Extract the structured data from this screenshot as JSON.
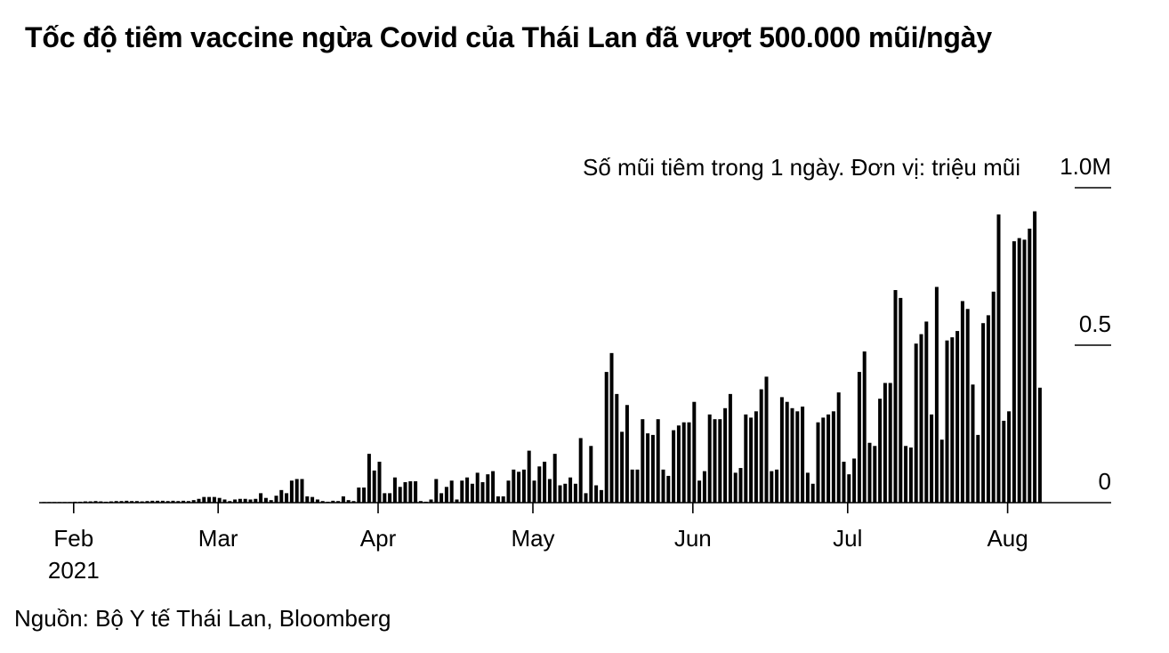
{
  "title": "Tốc độ tiêm vaccine ngừa Covid của Thái Lan đã vượt 500.000 mũi/ngày",
  "source": "Nguồn: Bộ Y tế Thái Lan, Bloomberg",
  "chart_data": {
    "type": "bar",
    "units_note": "Số mũi tiêm trong 1 ngày. Đơn vị: triệu mũi",
    "ylim": [
      0,
      1.0
    ],
    "y_ticks": [
      {
        "value": 0,
        "label": "0"
      },
      {
        "value": 0.5,
        "label": "0.5"
      },
      {
        "value": 1.0,
        "label": "1.0M"
      }
    ],
    "x_ticks": [
      {
        "date": "2021-02-01",
        "label": "Feb",
        "sublabel": "2021"
      },
      {
        "date": "2021-03-01",
        "label": "Mar"
      },
      {
        "date": "2021-04-01",
        "label": "Apr"
      },
      {
        "date": "2021-05-01",
        "label": "May"
      },
      {
        "date": "2021-06-01",
        "label": "Jun"
      },
      {
        "date": "2021-07-01",
        "label": "Jul"
      },
      {
        "date": "2021-08-01",
        "label": "Aug"
      }
    ],
    "x_start": "2021-01-26",
    "series": [
      {
        "values": [
          0.002,
          0.002,
          0.002,
          0.002,
          0.002,
          0.002,
          0.003,
          0.003,
          0.004,
          0.004,
          0.005,
          0.004,
          0.003,
          0.004,
          0.005,
          0.005,
          0.006,
          0.005,
          0.005,
          0.004,
          0.005,
          0.006,
          0.006,
          0.006,
          0.005,
          0.006,
          0.005,
          0.006,
          0.005,
          0.008,
          0.012,
          0.018,
          0.018,
          0.018,
          0.015,
          0.01,
          0.005,
          0.01,
          0.012,
          0.012,
          0.01,
          0.012,
          0.03,
          0.015,
          0.008,
          0.022,
          0.04,
          0.03,
          0.07,
          0.075,
          0.075,
          0.02,
          0.018,
          0.01,
          0.005,
          0.003,
          0.006,
          0.005,
          0.02,
          0.008,
          0.005,
          0.048,
          0.048,
          0.155,
          0.102,
          0.13,
          0.03,
          0.03,
          0.08,
          0.05,
          0.065,
          0.068,
          0.068,
          0.005,
          0.003,
          0.01,
          0.075,
          0.03,
          0.05,
          0.07,
          0.01,
          0.07,
          0.08,
          0.06,
          0.095,
          0.065,
          0.09,
          0.1,
          0.02,
          0.02,
          0.07,
          0.105,
          0.098,
          0.105,
          0.165,
          0.07,
          0.115,
          0.13,
          0.075,
          0.155,
          0.055,
          0.06,
          0.08,
          0.06,
          0.205,
          0.03,
          0.18,
          0.055,
          0.04,
          0.415,
          0.475,
          0.345,
          0.225,
          0.31,
          0.105,
          0.105,
          0.265,
          0.22,
          0.215,
          0.265,
          0.105,
          0.085,
          0.23,
          0.245,
          0.255,
          0.255,
          0.32,
          0.07,
          0.1,
          0.28,
          0.265,
          0.265,
          0.3,
          0.345,
          0.095,
          0.11,
          0.28,
          0.27,
          0.29,
          0.36,
          0.4,
          0.1,
          0.105,
          0.335,
          0.32,
          0.3,
          0.29,
          0.305,
          0.095,
          0.06,
          0.255,
          0.27,
          0.28,
          0.29,
          0.35,
          0.13,
          0.09,
          0.14,
          0.415,
          0.48,
          0.19,
          0.18,
          0.33,
          0.38,
          0.38,
          0.675,
          0.65,
          0.18,
          0.175,
          0.505,
          0.535,
          0.575,
          0.28,
          0.685,
          0.2,
          0.515,
          0.525,
          0.545,
          0.64,
          0.615,
          0.375,
          0.215,
          0.57,
          0.595,
          0.67,
          0.915,
          0.26,
          0.29,
          0.83,
          0.84,
          0.835,
          0.87,
          0.925,
          0.365
        ]
      }
    ]
  }
}
